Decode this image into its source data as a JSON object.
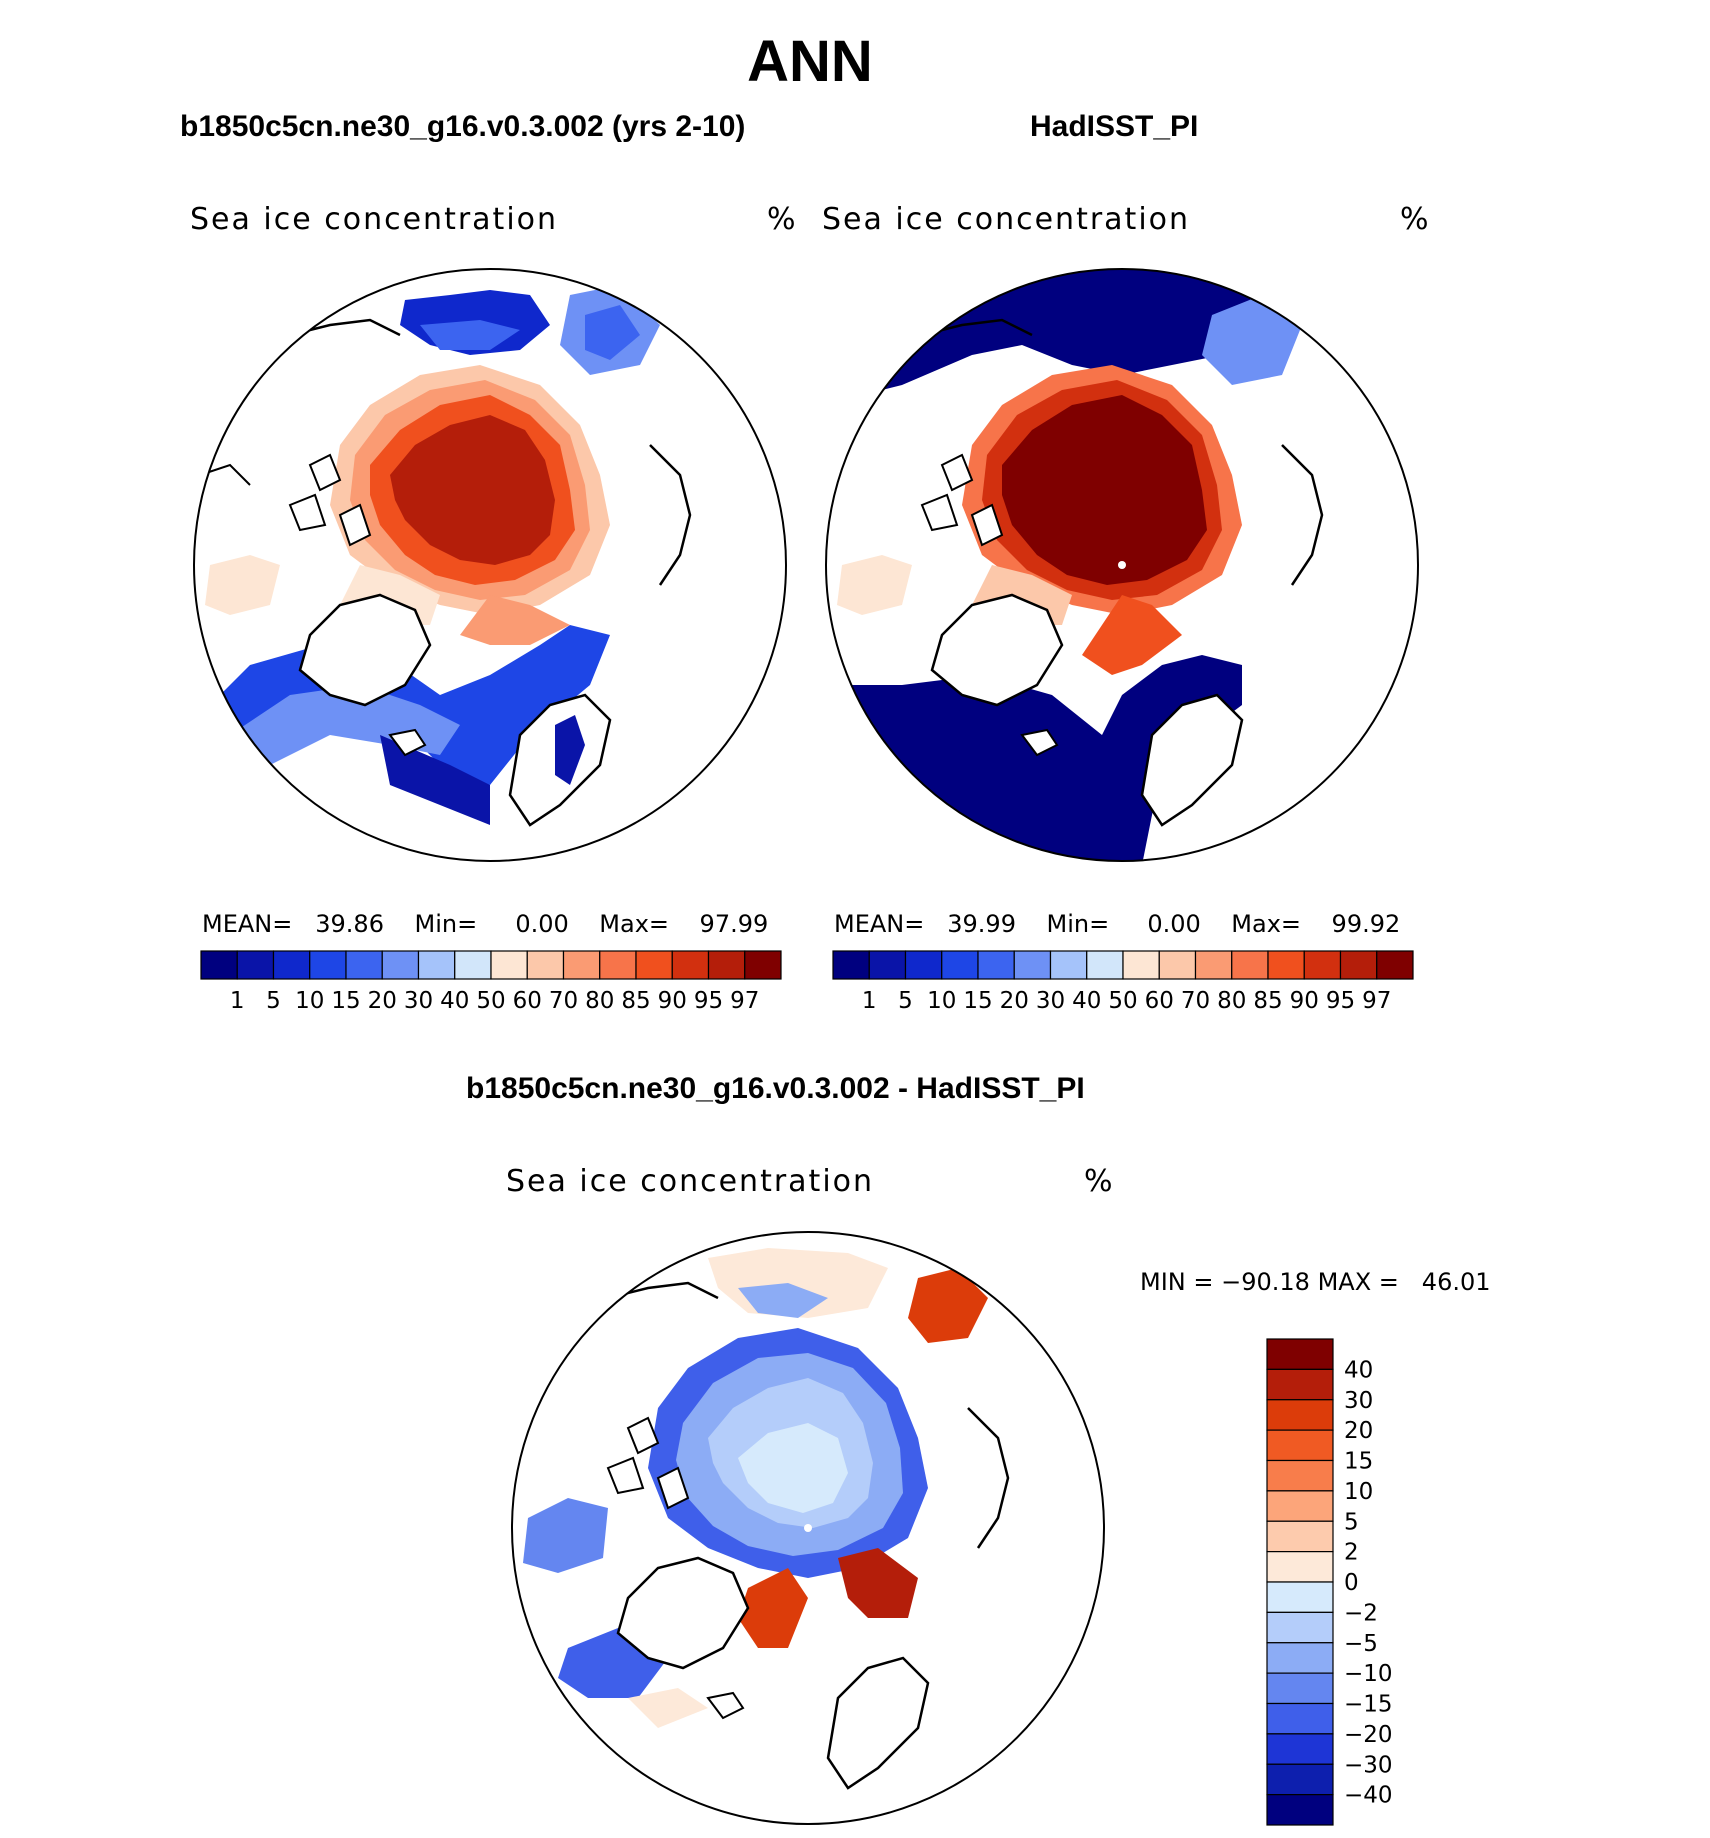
{
  "title": "ANN",
  "panels": [
    {
      "id": "model",
      "case_title": "b1850c5cn.ne30_g16.v0.3.002 (yrs 2-10)",
      "variable": "Sea ice concentration",
      "units": "%",
      "stats": {
        "mean_label": "MEAN=",
        "mean": "39.86",
        "min_label": "Min=",
        "min": "0.00",
        "max_label": "Max=",
        "max": "97.99"
      },
      "colorbar_labels": [
        "1",
        "5",
        "10",
        "15",
        "20",
        "30",
        "40",
        "50",
        "60",
        "70",
        "80",
        "85",
        "90",
        "95",
        "97"
      ]
    },
    {
      "id": "obs",
      "case_title": "HadISST_PI",
      "variable": "Sea ice concentration",
      "units": "%",
      "stats": {
        "mean_label": "MEAN=",
        "mean": "39.99",
        "min_label": "Min=",
        "min": "0.00",
        "max_label": "Max=",
        "max": "99.92"
      },
      "colorbar_labels": [
        "1",
        "5",
        "10",
        "15",
        "20",
        "30",
        "40",
        "50",
        "60",
        "70",
        "80",
        "85",
        "90",
        "95",
        "97"
      ]
    }
  ],
  "diff": {
    "case_title": "b1850c5cn.ne30_g16.v0.3.002 - HadISST_PI",
    "variable": "Sea ice concentration",
    "units": "%",
    "minmax": {
      "min_label": "MIN =",
      "min": "−90.18",
      "max_label": "MAX =",
      "max": "46.01"
    },
    "colorbar_labels": [
      "40",
      "30",
      "20",
      "15",
      "10",
      "5",
      "2",
      "0",
      "−2",
      "−5",
      "−10",
      "−15",
      "−20",
      "−30",
      "−40"
    ]
  },
  "colors": {
    "abs_scale": [
      "#00007f",
      "#0a14a8",
      "#0f28cc",
      "#1e46e6",
      "#3c64f0",
      "#6e91f5",
      "#a5c3fa",
      "#d2e6fa",
      "#fde6d4",
      "#fcc8aa",
      "#fa9b73",
      "#f7744a",
      "#f0501e",
      "#d2300f",
      "#b41e0a",
      "#7f0000"
    ],
    "diff_scale": [
      "#7f0000",
      "#b41e0a",
      "#dc3c0a",
      "#f05a23",
      "#f87d4b",
      "#fca57a",
      "#fdcbad",
      "#fde9d9",
      "#d6eafc",
      "#b4cdfa",
      "#8cacf5",
      "#6486f0",
      "#3f5fea",
      "#1e35d6",
      "#0d1fae",
      "#00007f"
    ]
  }
}
